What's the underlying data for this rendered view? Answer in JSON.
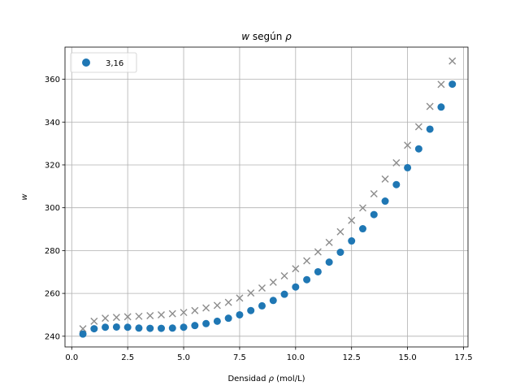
{
  "chart_data": {
    "type": "scatter",
    "title_prefix": "w",
    "title_middle": " según ",
    "title_suffix": "ρ",
    "xlabel_prefix": "Densidad ",
    "xlabel_symbol": "ρ",
    "xlabel_suffix": " (mol/L)",
    "ylabel": "w",
    "xlim": [
      -0.3,
      17.7
    ],
    "ylim": [
      235,
      375
    ],
    "xticks": [
      0.0,
      2.5,
      5.0,
      7.5,
      10.0,
      12.5,
      15.0,
      17.5
    ],
    "xtick_labels": [
      "0.0",
      "2.5",
      "5.0",
      "7.5",
      "10.0",
      "12.5",
      "15.0",
      "17.5"
    ],
    "yticks": [
      240,
      260,
      280,
      300,
      320,
      340,
      360
    ],
    "ytick_labels": [
      "240",
      "260",
      "280",
      "300",
      "320",
      "340",
      "360"
    ],
    "grid": true,
    "legend_position": "top-left",
    "series": [
      {
        "name": "3,16",
        "marker": "circle",
        "color": "#1f77b4",
        "x": [
          0.5,
          1.0,
          1.5,
          2.0,
          2.5,
          3.0,
          3.5,
          4.0,
          4.5,
          5.0,
          5.5,
          6.0,
          6.5,
          7.0,
          7.5,
          8.0,
          8.5,
          9.0,
          9.5,
          10.0,
          10.5,
          11.0,
          11.5,
          12.0,
          12.5,
          13.0,
          13.5,
          14.0,
          14.5,
          15.0,
          15.5,
          16.0,
          16.5,
          17.0
        ],
        "y": [
          241.0,
          243.5,
          244.2,
          244.3,
          244.2,
          243.8,
          243.7,
          243.7,
          243.8,
          244.2,
          245.0,
          245.9,
          247.0,
          248.4,
          250.0,
          252.0,
          254.2,
          256.7,
          259.6,
          263.0,
          266.4,
          270.1,
          274.6,
          279.2,
          284.5,
          290.2,
          296.8,
          303.1,
          310.8,
          318.7,
          327.5,
          336.7,
          347.0,
          357.7
        ]
      },
      {
        "marker": "x",
        "color": "#8c8c8c",
        "x": [
          0.5,
          1.0,
          1.5,
          2.0,
          2.5,
          3.0,
          3.5,
          4.0,
          4.5,
          5.0,
          5.5,
          6.0,
          6.5,
          7.0,
          7.5,
          8.0,
          8.5,
          9.0,
          9.5,
          10.0,
          10.5,
          11.0,
          11.5,
          12.0,
          12.5,
          13.0,
          13.5,
          14.0,
          14.5,
          15.0,
          15.5,
          16.0,
          16.5,
          17.0
        ],
        "y": [
          243.5,
          247.0,
          248.4,
          248.8,
          249.1,
          249.3,
          249.6,
          250.0,
          250.5,
          251.1,
          252.0,
          253.2,
          254.4,
          255.8,
          257.8,
          260.2,
          262.5,
          265.2,
          268.2,
          271.5,
          275.2,
          279.4,
          283.8,
          288.8,
          294.1,
          299.9,
          306.5,
          313.4,
          321.0,
          329.2,
          337.8,
          347.3,
          357.6,
          368.5
        ]
      }
    ]
  }
}
